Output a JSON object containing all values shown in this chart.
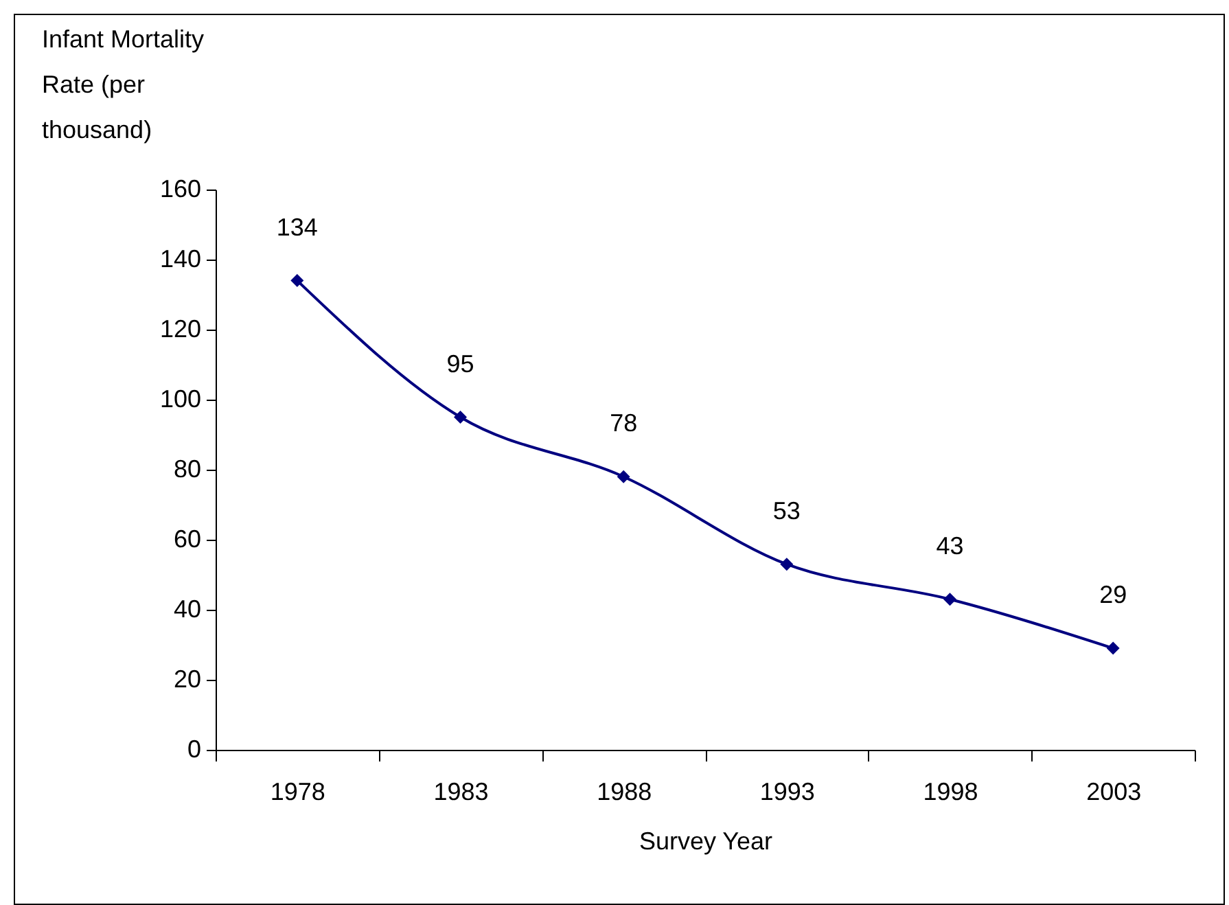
{
  "chart_data": {
    "type": "line",
    "xlabel": "Survey Year",
    "ylabel": "Infant Mortality Rate (per thousand)",
    "categories": [
      "1978",
      "1983",
      "1988",
      "1993",
      "1998",
      "2003"
    ],
    "series": [
      {
        "color": "#000080",
        "values": [
          134,
          95,
          78,
          53,
          43,
          29
        ]
      }
    ],
    "ylim": [
      0,
      160
    ],
    "yticks": [
      0,
      20,
      40,
      60,
      80,
      100,
      120,
      140,
      160
    ],
    "data_labels": true,
    "marker": "diamond",
    "line_style": "solid",
    "grid": false
  }
}
